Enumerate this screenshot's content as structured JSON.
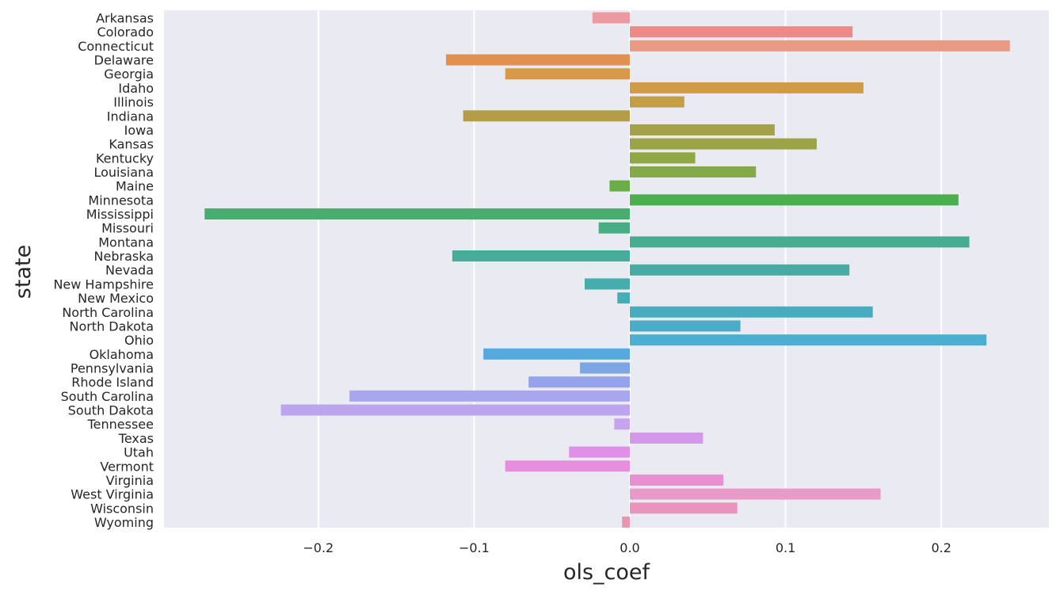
{
  "chart_data": {
    "type": "bar",
    "orientation": "horizontal",
    "xlabel": "ols_coef",
    "ylabel": "state",
    "xlim": [
      -0.298,
      0.27
    ],
    "xticks": [
      -0.2,
      -0.1,
      0.0,
      0.1,
      0.2
    ],
    "xtick_labels": [
      "−0.2",
      "−0.1",
      "0.0",
      "0.1",
      "0.2"
    ],
    "grid": "vertical",
    "categories": [
      "Arkansas",
      "Colorado",
      "Connecticut",
      "Delaware",
      "Georgia",
      "Idaho",
      "Illinois",
      "Indiana",
      "Iowa",
      "Kansas",
      "Kentucky",
      "Louisiana",
      "Maine",
      "Minnesota",
      "Mississippi",
      "Missouri",
      "Montana",
      "Nebraska",
      "Nevada",
      "New Hampshire",
      "New Mexico",
      "North Carolina",
      "North Dakota",
      "Ohio",
      "Oklahoma",
      "Pennsylvania",
      "Rhode Island",
      "South Carolina",
      "South Dakota",
      "Tennessee",
      "Texas",
      "Utah",
      "Vermont",
      "Virginia",
      "West Virginia",
      "Wisconsin",
      "Wyoming"
    ],
    "values": [
      -0.024,
      0.143,
      0.244,
      -0.118,
      -0.08,
      0.15,
      0.035,
      -0.107,
      0.093,
      0.12,
      0.042,
      0.081,
      -0.013,
      0.211,
      -0.273,
      -0.02,
      0.218,
      -0.114,
      0.141,
      -0.029,
      -0.008,
      0.156,
      0.071,
      0.229,
      -0.094,
      -0.032,
      -0.065,
      -0.18,
      -0.224,
      -0.01,
      0.047,
      -0.039,
      -0.08,
      0.06,
      0.161,
      0.069,
      -0.005
    ],
    "colors": [
      "#eb9aa2",
      "#ec8a86",
      "#e89a82",
      "#e09150",
      "#d89a4a",
      "#cf9b48",
      "#c49e45",
      "#b39d46",
      "#a4a14a",
      "#9aa346",
      "#8fa844",
      "#84aa44",
      "#6aad47",
      "#4aaf4d",
      "#48ad6f",
      "#47ad83",
      "#47ad91",
      "#47ac99",
      "#47aba4",
      "#47acac",
      "#47adb5",
      "#47adbe",
      "#49adc8",
      "#4caed1",
      "#56a9dd",
      "#7ba6e4",
      "#94a3ec",
      "#a8a6ec",
      "#bba5ee",
      "#c7a4ee",
      "#d398ea",
      "#df8fe6",
      "#e68ddd",
      "#e88fd1",
      "#e89ac8",
      "#e993bd",
      "#ea95ae"
    ]
  }
}
